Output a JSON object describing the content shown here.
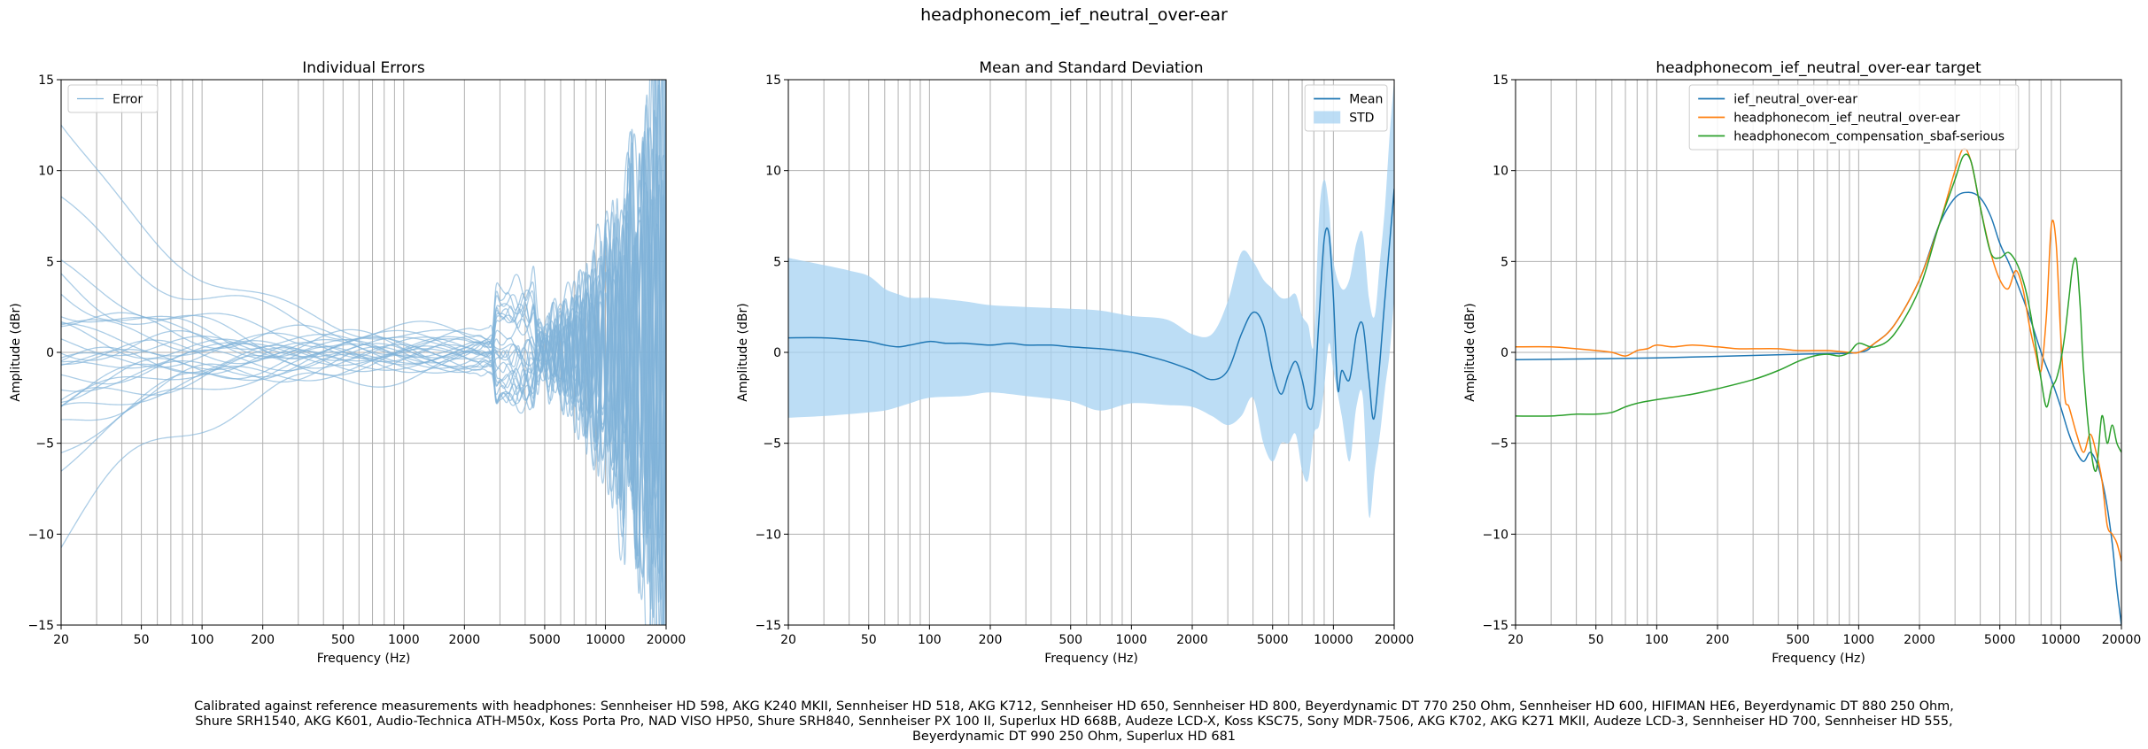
{
  "figure_title": "headphonecom_ief_neutral_over-ear",
  "caption_lines": [
    "Calibrated against reference measurements with headphones: Sennheiser HD 598, AKG K240 MKII, Sennheiser HD 518, AKG K712, Sennheiser HD 650, Sennheiser HD 800, Beyerdynamic DT 770 250 Ohm, Sennheiser HD 600, HIFIMAN HE6, Beyerdynamic DT 880 250 Ohm,",
    "Shure SRH1540, AKG K601, Audio-Technica ATH-M50x, Koss Porta Pro, NAD VISO HP50, Shure SRH840, Sennheiser PX 100 II, Superlux HD 668B, Audeze LCD-X, Koss KSC75, Sony MDR-7506, AKG K702, AKG K271 MKII, Audeze LCD-3, Sennheiser HD 700, Sennheiser HD 555,",
    "Beyerdynamic DT 990 250 Ohm, Superlux HD 681"
  ],
  "colors": {
    "blue": "#1f77b4",
    "orange": "#ff7f0e",
    "green": "#2ca02c",
    "std_fill": "#a6d1f2",
    "error_line": "#7fb2d9",
    "grid": "#b0b0b0"
  },
  "chart_data": [
    {
      "type": "line",
      "title": "Individual Errors",
      "xlabel": "Frequency (Hz)",
      "ylabel": "Amplitude (dBr)",
      "xscale": "log",
      "xlim": [
        20,
        20000
      ],
      "ylim": [
        -15,
        15
      ],
      "xticks": [
        20,
        50,
        100,
        200,
        500,
        1000,
        2000,
        5000,
        10000,
        20000
      ],
      "xtick_labels": [
        "20",
        "50",
        "100",
        "200",
        "500",
        "1000",
        "2000",
        "5000",
        "10000",
        "20000"
      ],
      "yticks": [
        -15,
        -10,
        -5,
        0,
        5,
        10,
        15
      ],
      "ytick_labels": [
        "−15",
        "−10",
        "−5",
        "0",
        "5",
        "10",
        "15"
      ],
      "grid": true,
      "legend": {
        "position": "top-left",
        "entries": [
          "Error"
        ]
      },
      "error_curve_count": 28,
      "error_start_values": [
        12.5,
        8.0,
        4.5,
        4.0,
        3.5,
        2.5,
        2.0,
        1.5,
        1.2,
        1.0,
        0.5,
        0.3,
        0.0,
        -0.3,
        -0.5,
        -0.8,
        -1.0,
        -1.5,
        -1.8,
        -2.0,
        -2.5,
        -3.0,
        -3.2,
        -3.5,
        -4.0,
        -5.2,
        -6.0,
        -10.2
      ]
    },
    {
      "type": "line",
      "title": "Mean and Standard Deviation",
      "xlabel": "Frequency (Hz)",
      "ylabel": "Amplitude (dBr)",
      "xscale": "log",
      "xlim": [
        20,
        20000
      ],
      "ylim": [
        -15,
        15
      ],
      "xticks": [
        20,
        50,
        100,
        200,
        500,
        1000,
        2000,
        5000,
        10000,
        20000
      ],
      "xtick_labels": [
        "20",
        "50",
        "100",
        "200",
        "500",
        "1000",
        "2000",
        "5000",
        "10000",
        "20000"
      ],
      "yticks": [
        -15,
        -10,
        -5,
        0,
        5,
        10,
        15
      ],
      "ytick_labels": [
        "−15",
        "−10",
        "−5",
        "0",
        "5",
        "10",
        "15"
      ],
      "grid": true,
      "legend": {
        "position": "top-right",
        "entries": [
          "Mean",
          "STD"
        ]
      },
      "series": [
        {
          "name": "Mean",
          "color": "#1f77b4",
          "x": [
            20,
            30,
            40,
            50,
            60,
            70,
            80,
            100,
            120,
            150,
            200,
            250,
            300,
            400,
            500,
            700,
            1000,
            1300,
            1600,
            2000,
            2500,
            3000,
            3500,
            4000,
            4500,
            5000,
            5500,
            6000,
            6500,
            7000,
            7500,
            8000,
            8500,
            9000,
            9500,
            10000,
            10500,
            11000,
            12000,
            13000,
            14000,
            15000,
            16000,
            18000,
            20000
          ],
          "y": [
            0.8,
            0.8,
            0.7,
            0.6,
            0.4,
            0.3,
            0.4,
            0.6,
            0.5,
            0.5,
            0.4,
            0.5,
            0.4,
            0.4,
            0.3,
            0.2,
            0.0,
            -0.3,
            -0.6,
            -1.0,
            -1.5,
            -1.0,
            1.0,
            2.2,
            1.5,
            -1.0,
            -2.3,
            -1.2,
            -0.5,
            -1.5,
            -3.0,
            -2.5,
            2.0,
            6.2,
            6.5,
            3.0,
            -2.0,
            -1.0,
            -1.5,
            1.0,
            1.5,
            -1.5,
            -3.5,
            3.0,
            9.0
          ]
        },
        {
          "name": "STD",
          "color": "#a6d1f2",
          "x": [
            20,
            30,
            40,
            50,
            60,
            70,
            80,
            100,
            150,
            200,
            300,
            500,
            700,
            1000,
            1500,
            2000,
            2500,
            3000,
            3500,
            4000,
            4500,
            5000,
            5500,
            6000,
            6500,
            7000,
            7500,
            8000,
            8500,
            9000,
            9500,
            10000,
            11000,
            12000,
            13000,
            14000,
            15000,
            16000,
            17000,
            18000,
            19000,
            20000
          ],
          "upper": [
            5.2,
            4.8,
            4.5,
            4.2,
            3.5,
            3.2,
            3.0,
            3.0,
            2.8,
            2.6,
            2.5,
            2.4,
            2.3,
            2.0,
            1.8,
            1.0,
            1.0,
            2.8,
            5.5,
            5.0,
            4.0,
            3.5,
            3.0,
            3.0,
            3.2,
            2.0,
            1.5,
            0.5,
            7.5,
            9.5,
            8.0,
            5.0,
            3.5,
            4.0,
            6.0,
            6.5,
            3.0,
            2.0,
            5.0,
            8.0,
            12.0,
            15.0
          ],
          "lower": [
            -3.6,
            -3.5,
            -3.4,
            -3.3,
            -3.2,
            -3.0,
            -2.8,
            -2.5,
            -2.4,
            -2.2,
            -2.4,
            -2.7,
            -3.2,
            -2.8,
            -2.9,
            -3.0,
            -3.5,
            -4.0,
            -3.5,
            -2.5,
            -5.0,
            -6.0,
            -5.0,
            -5.0,
            -4.5,
            -6.5,
            -7.0,
            -4.5,
            -4.0,
            -2.0,
            0.5,
            -1.0,
            -3.5,
            -6.0,
            -3.0,
            -2.5,
            -9.0,
            -6.5,
            -4.5,
            -2.0,
            0.0,
            3.0
          ]
        }
      ]
    },
    {
      "type": "line",
      "title": "headphonecom_ief_neutral_over-ear target",
      "xlabel": "Frequency (Hz)",
      "ylabel": "Amplitude (dBr)",
      "xscale": "log",
      "xlim": [
        20,
        20000
      ],
      "ylim": [
        -15,
        15
      ],
      "xticks": [
        20,
        50,
        100,
        200,
        500,
        1000,
        2000,
        5000,
        10000,
        20000
      ],
      "xtick_labels": [
        "20",
        "50",
        "100",
        "200",
        "500",
        "1000",
        "2000",
        "5000",
        "10000",
        "20000"
      ],
      "yticks": [
        -15,
        -10,
        -5,
        0,
        5,
        10,
        15
      ],
      "ytick_labels": [
        "−15",
        "−10",
        "−5",
        "0",
        "5",
        "10",
        "15"
      ],
      "grid": true,
      "legend": {
        "position": "top-center",
        "entries": [
          "ief_neutral_over-ear",
          "headphonecom_ief_neutral_over-ear",
          "headphonecom_compensation_sbaf-serious"
        ]
      },
      "series": [
        {
          "name": "ief_neutral_over-ear",
          "color": "#1f77b4",
          "x": [
            20,
            100,
            500,
            1000,
            1200,
            1500,
            2000,
            2500,
            3000,
            3500,
            4000,
            4500,
            5000,
            5500,
            6000,
            7000,
            8000,
            9000,
            10000,
            11000,
            12000,
            13000,
            14000,
            15000,
            16000,
            17000,
            18000,
            19000,
            20000
          ],
          "y": [
            -0.4,
            -0.3,
            -0.1,
            0.0,
            0.5,
            1.5,
            4.0,
            7.0,
            8.5,
            8.8,
            8.5,
            7.5,
            6.0,
            5.0,
            4.0,
            2.0,
            0.0,
            -1.5,
            -3.0,
            -4.5,
            -5.5,
            -6.0,
            -5.5,
            -6.0,
            -7.0,
            -8.5,
            -10.5,
            -13.0,
            -15.0
          ]
        },
        {
          "name": "headphonecom_ief_neutral_over-ear",
          "color": "#ff7f0e",
          "x": [
            20,
            30,
            40,
            50,
            60,
            70,
            80,
            90,
            100,
            120,
            150,
            200,
            250,
            300,
            400,
            500,
            700,
            900,
            1000,
            1200,
            1500,
            2000,
            2500,
            3000,
            3300,
            3600,
            4000,
            4500,
            5000,
            5500,
            6000,
            6500,
            7000,
            7500,
            8000,
            8500,
            9000,
            9500,
            10000,
            10500,
            11000,
            12000,
            13000,
            14000,
            15000,
            16000,
            17000,
            18000,
            19000,
            20000
          ],
          "y": [
            0.3,
            0.3,
            0.2,
            0.1,
            0.0,
            -0.2,
            0.1,
            0.2,
            0.4,
            0.3,
            0.4,
            0.3,
            0.2,
            0.2,
            0.2,
            0.1,
            0.1,
            0.0,
            0.0,
            0.5,
            1.5,
            4.0,
            7.0,
            10.0,
            11.2,
            10.5,
            8.0,
            5.5,
            4.0,
            3.5,
            4.5,
            3.5,
            1.5,
            0.0,
            -1.0,
            2.0,
            7.0,
            6.0,
            1.0,
            -2.5,
            -3.0,
            -4.5,
            -5.5,
            -4.5,
            -5.5,
            -7.0,
            -9.5,
            -10.0,
            -10.5,
            -11.5
          ]
        },
        {
          "name": "headphonecom_compensation_sbaf-serious",
          "color": "#2ca02c",
          "x": [
            20,
            30,
            40,
            50,
            60,
            70,
            80,
            100,
            150,
            200,
            300,
            400,
            500,
            600,
            700,
            800,
            900,
            1000,
            1200,
            1500,
            2000,
            2500,
            3000,
            3300,
            3600,
            4000,
            4500,
            5000,
            5500,
            6000,
            6500,
            7000,
            7500,
            8000,
            8500,
            9000,
            9500,
            10000,
            10500,
            11000,
            11500,
            12000,
            12500,
            13000,
            14000,
            15000,
            16000,
            17000,
            18000,
            19000,
            20000
          ],
          "y": [
            -3.5,
            -3.5,
            -3.4,
            -3.4,
            -3.3,
            -3.0,
            -2.8,
            -2.6,
            -2.3,
            -2.0,
            -1.5,
            -1.0,
            -0.5,
            -0.2,
            -0.1,
            -0.2,
            0.0,
            0.5,
            0.3,
            1.0,
            3.5,
            7.0,
            9.5,
            10.8,
            10.5,
            8.0,
            5.5,
            5.2,
            5.5,
            5.0,
            4.0,
            2.5,
            0.5,
            -1.5,
            -3.0,
            -2.0,
            -1.5,
            -0.5,
            1.0,
            3.0,
            4.8,
            5.0,
            2.5,
            -1.0,
            -5.0,
            -6.5,
            -3.5,
            -5.0,
            -4.0,
            -5.0,
            -5.5
          ]
        }
      ]
    }
  ]
}
